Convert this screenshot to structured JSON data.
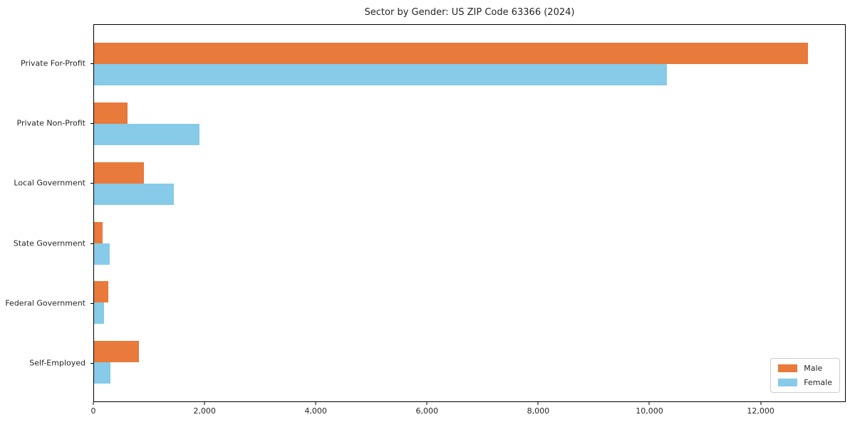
{
  "title": "Sector by Gender: US ZIP Code 63366 (2024)",
  "colors": {
    "male": "#E87A3C",
    "female": "#87CBE9",
    "spine": "#000000",
    "legend_border": "#CCCCCC",
    "text": "#262626"
  },
  "chart_data": {
    "type": "bar",
    "orientation": "horizontal",
    "title": "Sector by Gender: US ZIP Code 63366 (2024)",
    "categories": [
      "Private For-Profit",
      "Private Non-Profit",
      "Local Government",
      "State Government",
      "Federal Government",
      "Self-Employed"
    ],
    "series": [
      {
        "name": "Male",
        "color": "#E87A3C",
        "values": [
          12860,
          600,
          900,
          150,
          260,
          810
        ]
      },
      {
        "name": "Female",
        "color": "#87CBE9",
        "values": [
          10320,
          1900,
          1440,
          280,
          180,
          300
        ]
      }
    ],
    "xlabel": "",
    "ylabel": "",
    "xlim": [
      0,
      13530
    ],
    "xticks": [
      {
        "value": 0,
        "label": "0"
      },
      {
        "value": 2000,
        "label": "2,000"
      },
      {
        "value": 4000,
        "label": "4,000"
      },
      {
        "value": 6000,
        "label": "6,000"
      },
      {
        "value": 8000,
        "label": "8,000"
      },
      {
        "value": 10000,
        "label": "10,000"
      },
      {
        "value": 12000,
        "label": "12,000"
      }
    ],
    "grid": false,
    "legend_position": "lower right"
  }
}
